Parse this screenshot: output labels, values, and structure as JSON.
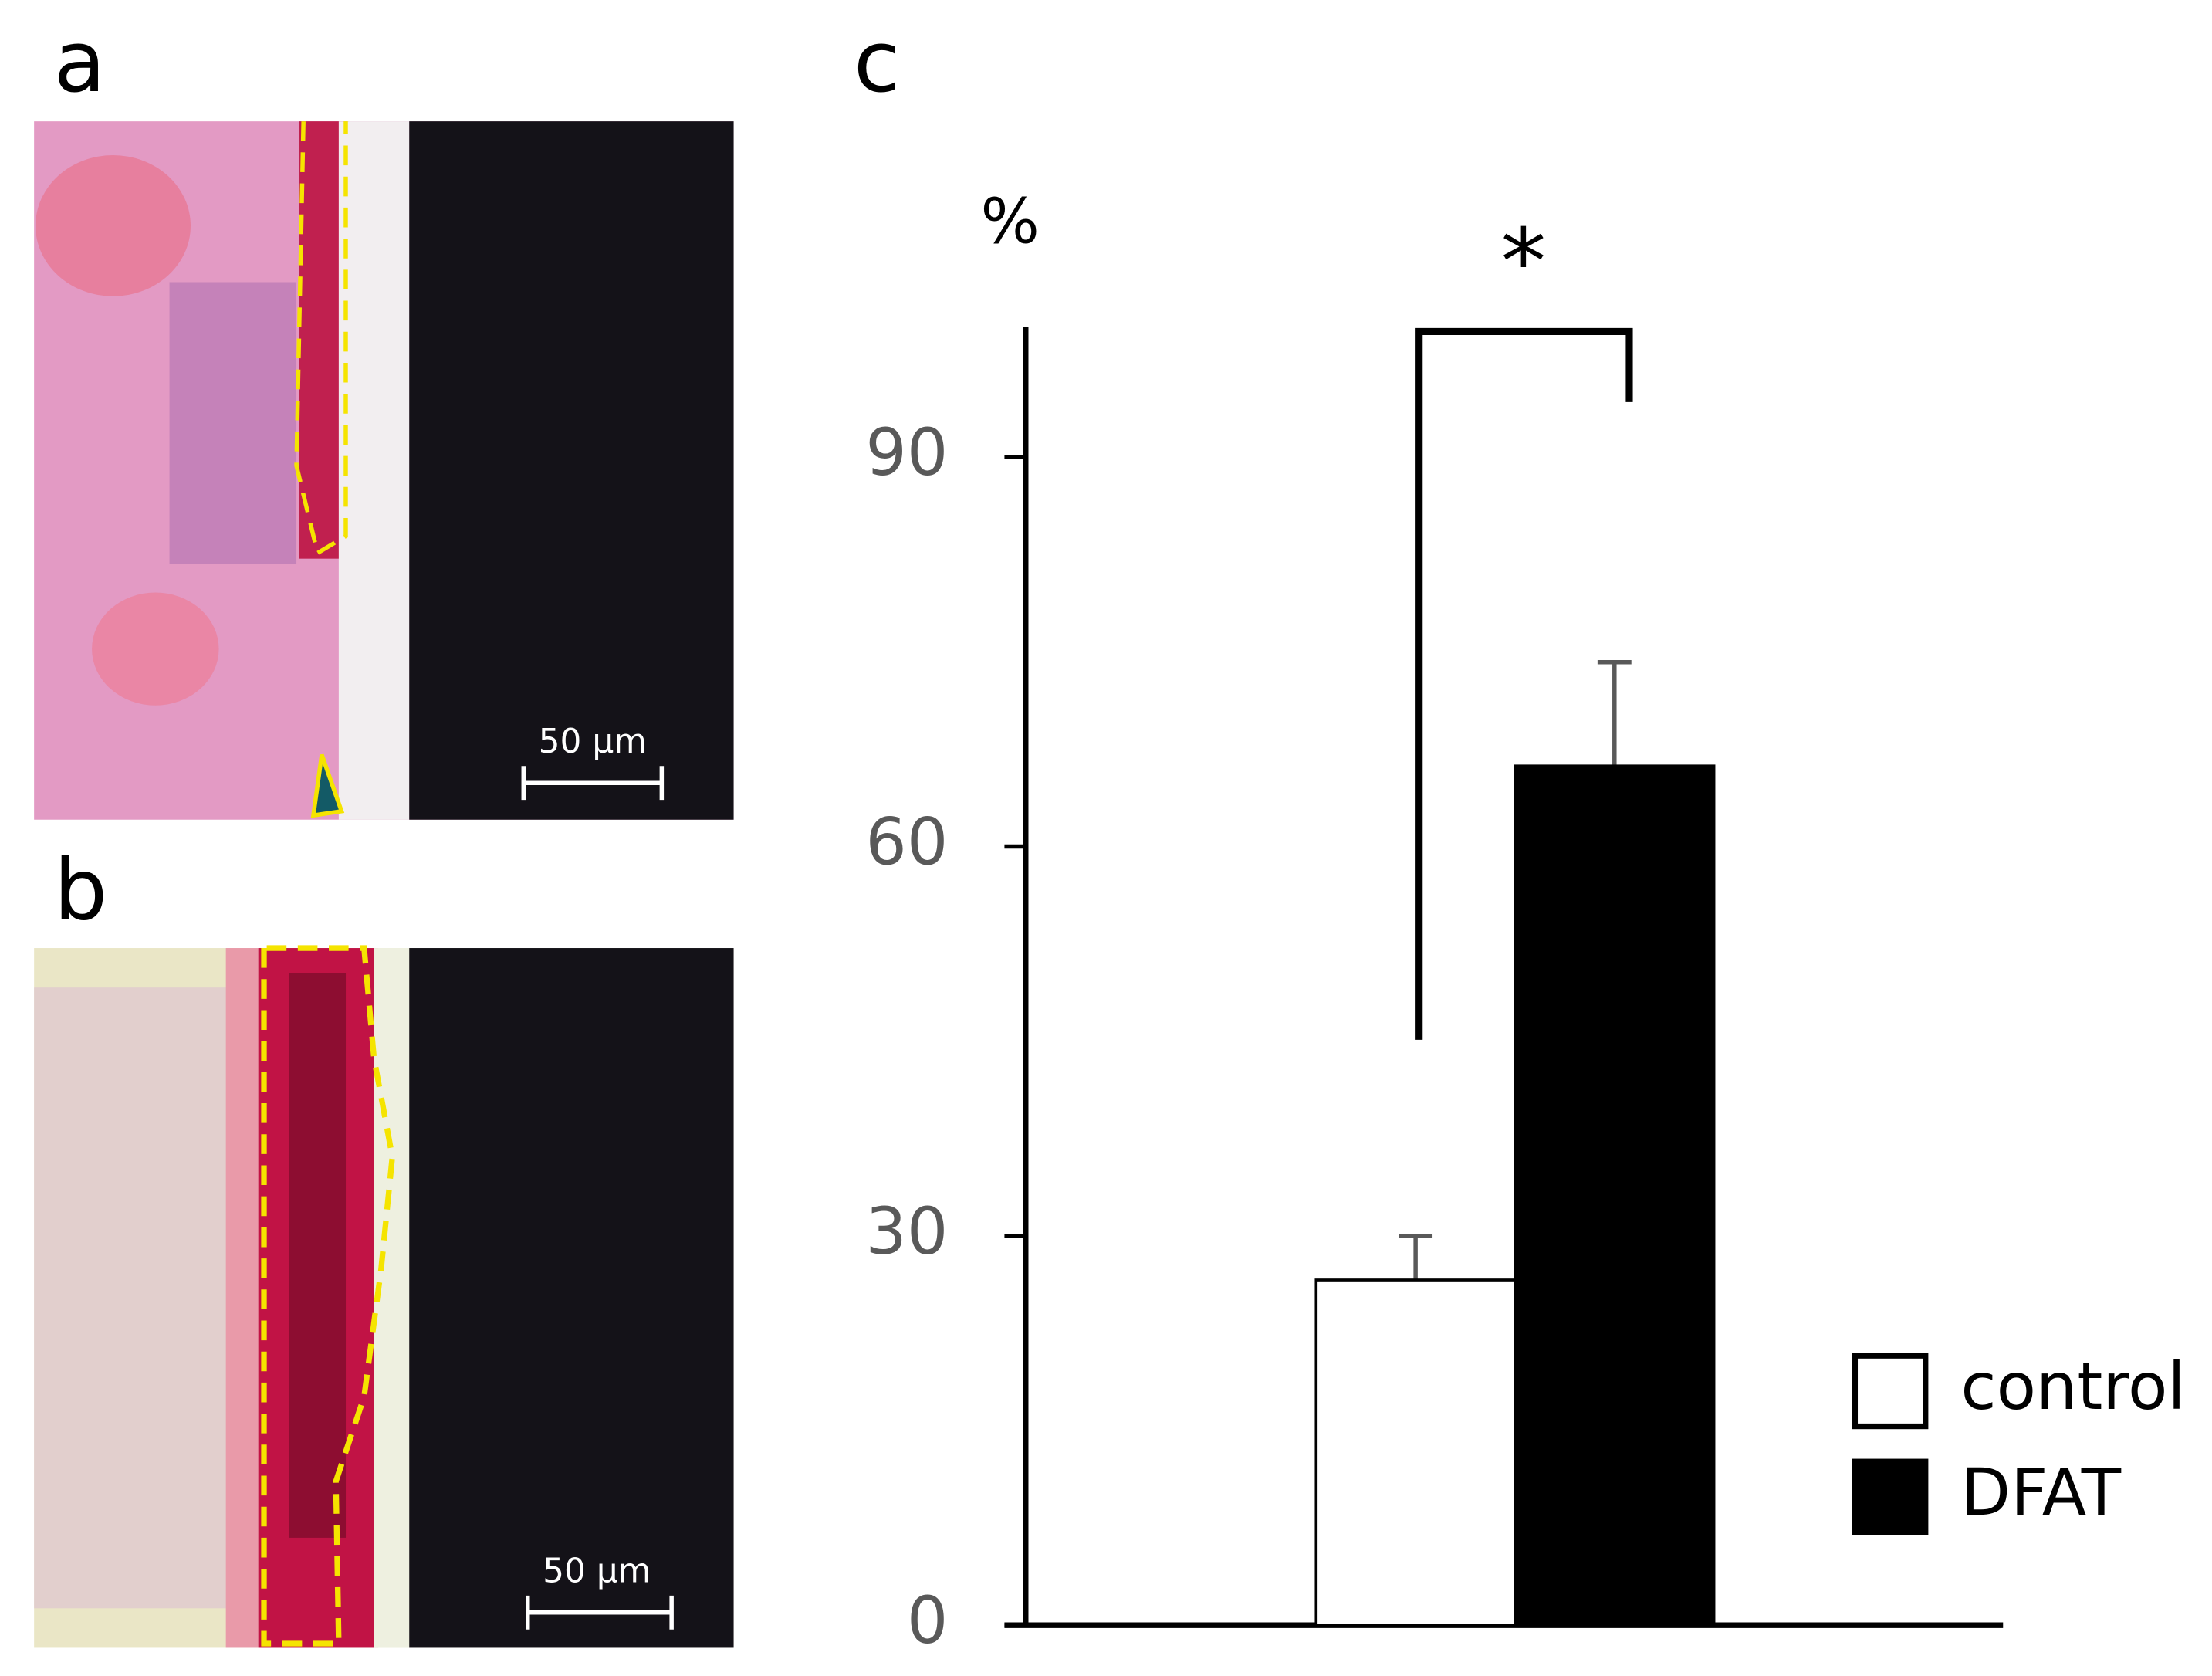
{
  "panels": [
    {
      "label": "a",
      "scale_bar": "50 µm"
    },
    {
      "label": "b",
      "scale_bar": "50 µm"
    }
  ],
  "chart_data": {
    "type": "bar",
    "panel_label": "c",
    "y_label": "%",
    "annotation": "*",
    "categories": [
      null
    ],
    "series": [
      {
        "name": "control",
        "color": "#ffffff",
        "values": [
          26.6
        ],
        "errors": [
          3.4
        ]
      },
      {
        "name": "DFAT",
        "color": "#000000",
        "values": [
          66.2
        ],
        "errors": [
          8.0
        ]
      }
    ],
    "ylim": [
      0,
      100
    ],
    "yticks": [
      0,
      30,
      60,
      90
    ],
    "legend": "lower right"
  }
}
